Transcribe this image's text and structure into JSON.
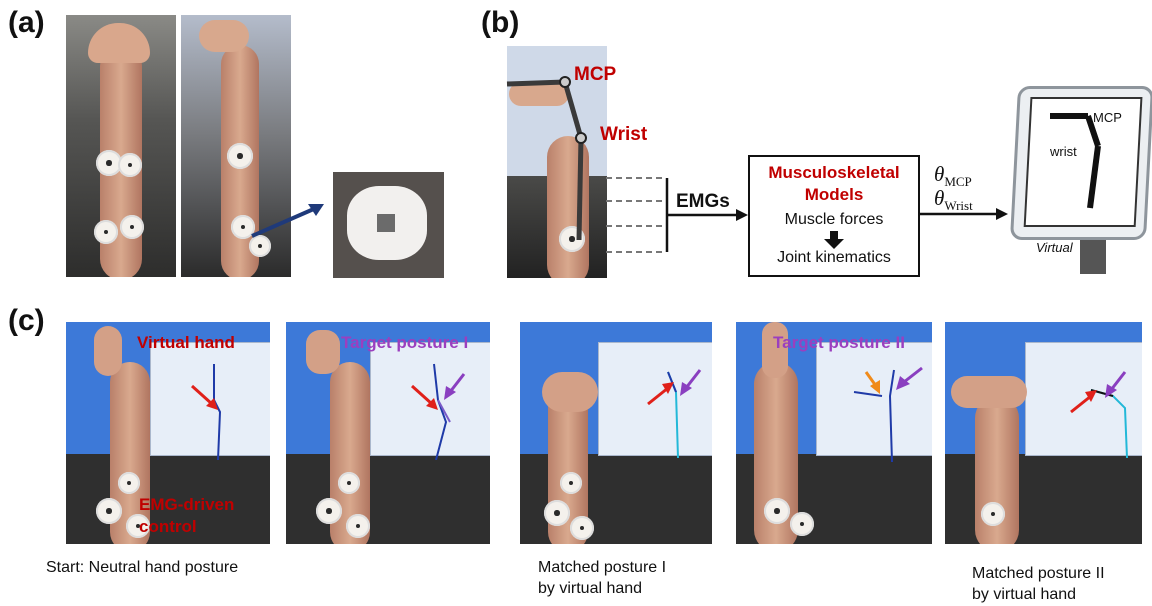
{
  "panels": {
    "a_label": "(a)",
    "b_label": "(b)",
    "c_label": "(c)"
  },
  "b": {
    "mcp_label": "MCP",
    "wrist_label": "Wrist",
    "emgs_label": "EMGs",
    "model_title_line1": "Musculoskeletal",
    "model_title_line2": "Models",
    "muscle_forces": "Muscle forces",
    "joint_kinematics": "Joint kinematics",
    "theta_symbol": "θ",
    "theta_mcp_sub": "MCP",
    "theta_wrist_sub": "Wrist",
    "tablet_mcp": "MCP",
    "tablet_wrist": "wrist",
    "tablet_caption": "Virtual"
  },
  "c": {
    "virtual_hand": "Virtual hand",
    "target_posture_1": "Target posture I",
    "target_posture_2": "Target posture II",
    "emg_driven_line1": "EMG-driven",
    "emg_driven_line2": "control",
    "caption_start": "Start: Neutral hand posture",
    "caption_matched1_line1": "Matched posture I",
    "caption_matched1_line2": "by virtual hand",
    "caption_matched2_line1": "Matched posture II",
    "caption_matched2_line2": "by virtual hand"
  },
  "colors": {
    "red": "#c00000",
    "purple": "#9b3fbf",
    "arrow_red": "#e0201a",
    "arrow_purple": "#8a3fc0",
    "arrow_orange": "#f08a1a",
    "arrow_navy": "#1f3a7a",
    "screen_blue": "#3d79d8"
  }
}
